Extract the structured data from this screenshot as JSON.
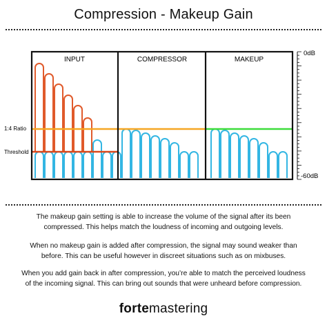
{
  "title": "Compression - Makeup Gain",
  "panels": [
    {
      "label": "INPUT"
    },
    {
      "label": "COMPRESSOR"
    },
    {
      "label": "MAKEUP"
    }
  ],
  "left_labels": {
    "ratio": "1:4 Ratio",
    "threshold": "Threshold"
  },
  "scale": {
    "top": "0dB",
    "bottom": "-60dB"
  },
  "colors": {
    "input_peaks": "#e05a2b",
    "signal": "#33b6e3",
    "ratio_line": "#f5a623",
    "threshold_line": "#d9481c",
    "makeup_line": "#3ddc3a",
    "frame": "#111111"
  },
  "paragraphs": [
    "The makeup gain setting is able to increase the volume of the signal after its been compressed. This helps match the loudness of incoming and outgoing levels.",
    "When no makeup gain is added after compression, the signal may sound weaker than before. This can be useful however in discreet situations such as on mixbuses.",
    "When you add gain back in after compression, you’re able to match the perceived loudness of the incoming signal. This can bring out sounds that were unheard before compression."
  ],
  "logo": {
    "bold": "forte",
    "regular": "mastering"
  }
}
